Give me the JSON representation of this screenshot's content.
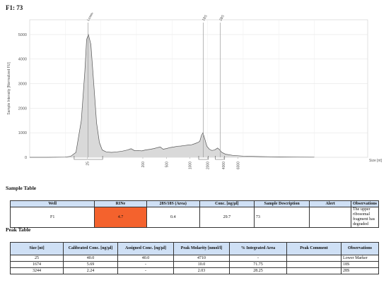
{
  "title": "F1: 73",
  "chart_data": {
    "type": "line",
    "ylabel": "Sample Intensity [Normalized FU]",
    "xlabel": "Size [nt]",
    "y_ticks": [
      "5000",
      "4000",
      "3000",
      "2000",
      "1000",
      "0"
    ],
    "x_ticks": [
      "25",
      "200",
      "500",
      "1000",
      "2000",
      "4000",
      "6000"
    ],
    "ylim": [
      0,
      5600
    ],
    "peak_labels": [
      "Lower",
      "18S",
      "28S"
    ],
    "fill_color": "#d9d9d9",
    "line_color": "#555555",
    "series": [
      {
        "values": [
          [
            0.0,
            0
          ],
          [
            0.5,
            0
          ],
          [
            1.0,
            10
          ],
          [
            1.15,
            40
          ],
          [
            1.3,
            200
          ],
          [
            1.45,
            1500
          ],
          [
            1.55,
            3500
          ],
          [
            1.6,
            4800
          ],
          [
            1.65,
            5000
          ],
          [
            1.72,
            4600
          ],
          [
            1.8,
            3000
          ],
          [
            1.88,
            1400
          ],
          [
            1.96,
            600
          ],
          [
            2.04,
            300
          ],
          [
            2.15,
            220
          ],
          [
            2.3,
            200
          ],
          [
            2.45,
            220
          ],
          [
            2.6,
            250
          ],
          [
            2.75,
            300
          ],
          [
            2.85,
            350
          ],
          [
            2.95,
            270
          ],
          [
            3.05,
            280
          ],
          [
            3.15,
            260
          ],
          [
            3.25,
            300
          ],
          [
            3.4,
            330
          ],
          [
            3.5,
            360
          ],
          [
            3.6,
            400
          ],
          [
            3.67,
            420
          ],
          [
            3.75,
            330
          ],
          [
            3.85,
            360
          ],
          [
            3.95,
            400
          ],
          [
            4.05,
            420
          ],
          [
            4.15,
            450
          ],
          [
            4.25,
            460
          ],
          [
            4.35,
            480
          ],
          [
            4.45,
            500
          ],
          [
            4.55,
            510
          ],
          [
            4.65,
            560
          ],
          [
            4.72,
            600
          ],
          [
            4.78,
            650
          ],
          [
            4.83,
            900
          ],
          [
            4.87,
            1000
          ],
          [
            4.92,
            750
          ],
          [
            4.98,
            450
          ],
          [
            5.05,
            330
          ],
          [
            5.12,
            280
          ],
          [
            5.2,
            300
          ],
          [
            5.28,
            380
          ],
          [
            5.33,
            320
          ],
          [
            5.4,
            200
          ],
          [
            5.5,
            130
          ],
          [
            5.7,
            80
          ],
          [
            6.0,
            50
          ],
          [
            6.5,
            30
          ],
          [
            7.0,
            18
          ],
          [
            7.5,
            10
          ],
          [
            8.0,
            5
          ]
        ]
      }
    ]
  },
  "sample_table": {
    "title": "Sample Table",
    "headers": [
      "Well",
      "RINe",
      "28S/18S (Area)",
      "Conc. [ng/µl]",
      "Sample Description",
      "Alert",
      "Observations"
    ],
    "rows": [
      [
        "F1",
        "4.7",
        "0.4",
        "29.7",
        "73",
        "",
        "The upper ribosomal fragment has degraded"
      ]
    ],
    "rine_color": "#f4622d"
  },
  "peak_table": {
    "title": "Peak Table",
    "headers": [
      "Size [nt]",
      "Calibrated Conc. [ng/µl]",
      "Assigned Conc. [ng/µl]",
      "Peak Molarity [nmol/l]",
      "% Integrated Area",
      "Peak Comment",
      "Observations"
    ],
    "rows": [
      [
        "25",
        "40.0",
        "40.0",
        "4710",
        "-",
        "",
        "Lower Marker"
      ],
      [
        "1674",
        "5.69",
        "-",
        "10.0",
        "71.75",
        "",
        "18S"
      ],
      [
        "3244",
        "2.24",
        "-",
        "2.03",
        "28.25",
        "",
        "28S"
      ]
    ]
  }
}
